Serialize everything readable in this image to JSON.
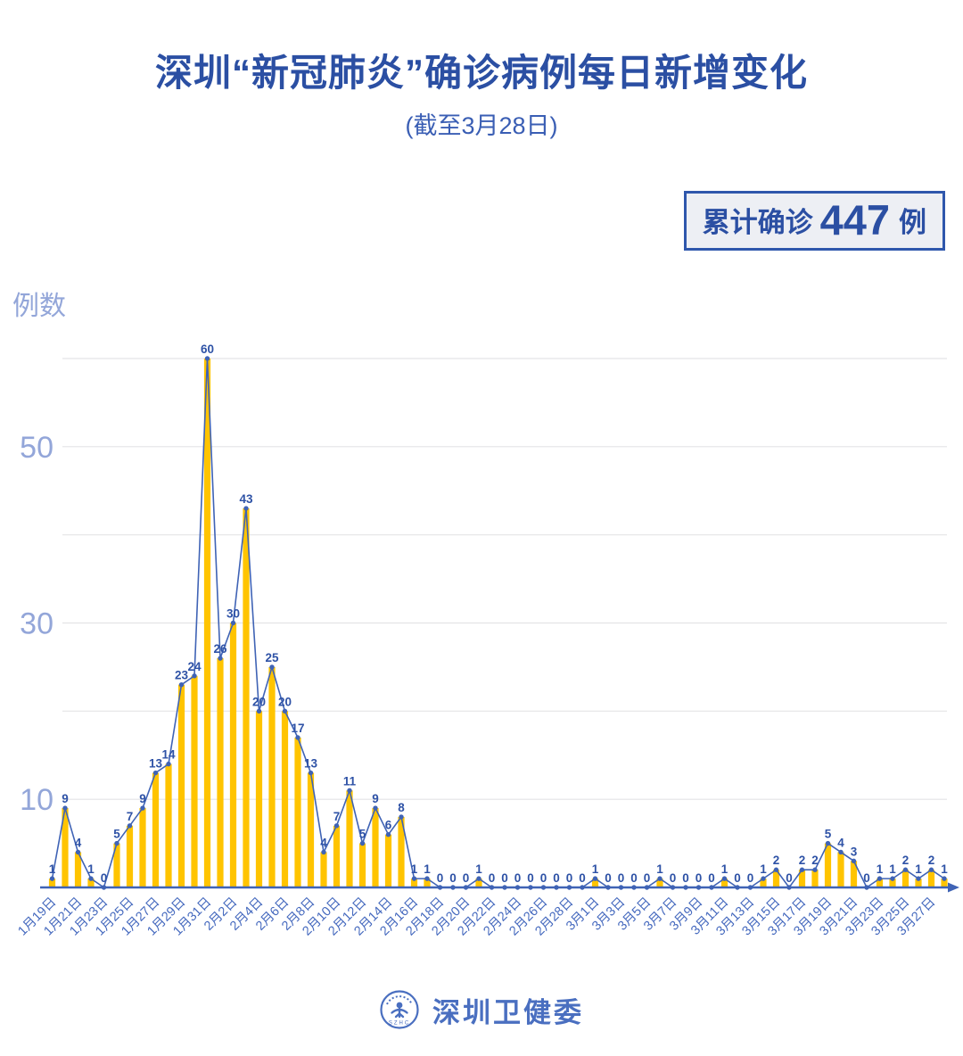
{
  "header": {
    "title": "深圳“新冠肺炎”确诊病例每日新增变化",
    "subtitle": "(截至3月28日)"
  },
  "summary_badge": {
    "prefix": "累计确诊",
    "value": "447",
    "suffix": "例"
  },
  "chart": {
    "y_axis_name": "例数"
  },
  "footer": {
    "logo_icon": "szhc-emblem",
    "logo_text": "SZHC",
    "org_name": "深圳卫健委"
  },
  "colors": {
    "bar": "#ffc400",
    "line": "#3f63b5",
    "value_label": "#2e52a6",
    "x_tick": "#4569be",
    "y_tick": "#93a6d9",
    "grid": "#e4e4e6",
    "title": "#2b4fa3",
    "badge_border": "#2f57ac",
    "badge_bg": "#edeff4",
    "footer_text": "#4a6fc0"
  },
  "chart_data": {
    "type": "bar",
    "subtype": "bar-with-line-and-markers",
    "title": "深圳“新冠肺炎”确诊病例每日新增变化（截至3月28日）",
    "xlabel": "",
    "ylabel": "例数",
    "ylim": [
      0,
      62
    ],
    "grid": "horizontal",
    "grid_levels": [
      10,
      20,
      30,
      40,
      50,
      60
    ],
    "y_ticks": [
      10,
      30,
      50
    ],
    "x_tick_interval": 2,
    "legend": "none",
    "cumulative_total": 447,
    "categories": [
      "1月19日",
      "1月20日",
      "1月21日",
      "1月22日",
      "1月23日",
      "1月24日",
      "1月25日",
      "1月26日",
      "1月27日",
      "1月28日",
      "1月29日",
      "1月30日",
      "1月31日",
      "2月1日",
      "2月2日",
      "2月3日",
      "2月4日",
      "2月5日",
      "2月6日",
      "2月7日",
      "2月8日",
      "2月9日",
      "2月10日",
      "2月11日",
      "2月12日",
      "2月13日",
      "2月14日",
      "2月15日",
      "2月16日",
      "2月17日",
      "2月18日",
      "2月19日",
      "2月20日",
      "2月21日",
      "2月22日",
      "2月23日",
      "2月24日",
      "2月25日",
      "2月26日",
      "2月27日",
      "2月28日",
      "2月29日",
      "3月1日",
      "3月2日",
      "3月3日",
      "3月4日",
      "3月5日",
      "3月6日",
      "3月7日",
      "3月8日",
      "3月9日",
      "3月10日",
      "3月11日",
      "3月12日",
      "3月13日",
      "3月14日",
      "3月15日",
      "3月16日",
      "3月17日",
      "3月18日",
      "3月19日",
      "3月20日",
      "3月21日",
      "3月22日",
      "3月23日",
      "3月24日",
      "3月25日",
      "3月26日",
      "3月27日",
      "3月28日"
    ],
    "values": [
      1,
      9,
      4,
      1,
      0,
      5,
      7,
      9,
      13,
      14,
      23,
      24,
      60,
      26,
      30,
      43,
      20,
      25,
      20,
      17,
      13,
      4,
      7,
      11,
      5,
      9,
      6,
      8,
      1,
      1,
      0,
      0,
      0,
      1,
      0,
      0,
      0,
      0,
      0,
      0,
      0,
      0,
      1,
      0,
      0,
      0,
      0,
      1,
      0,
      0,
      0,
      0,
      1,
      0,
      0,
      1,
      2,
      0,
      2,
      2,
      5,
      4,
      3,
      0,
      1,
      1,
      2,
      1,
      2,
      1
    ]
  }
}
